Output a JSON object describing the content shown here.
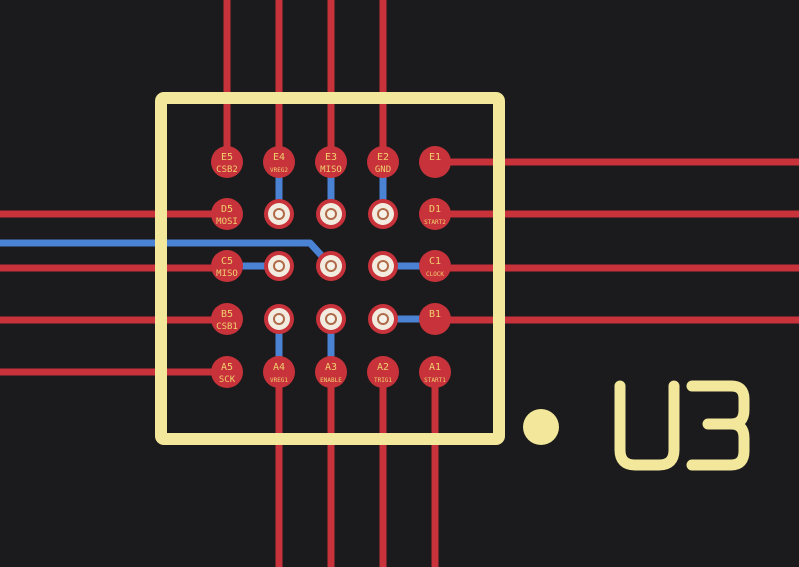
{
  "colors": {
    "background": "#1b1b1d",
    "copper_top": "#c8323a",
    "copper_bottom": "#4a82d4",
    "silkscreen": "#f2e79a",
    "pad": "#c8323a",
    "pad_label": "#f0d070",
    "via_ring": "#f1ecdf",
    "via_hole": "#b06a4a"
  },
  "component": {
    "reference": "U3",
    "pin1_marker": "dot"
  },
  "pads": [
    {
      "id": "E5",
      "net": "CSB2"
    },
    {
      "id": "E4",
      "net": "VREG2"
    },
    {
      "id": "E3",
      "net": "MISO"
    },
    {
      "id": "E2",
      "net": "GND"
    },
    {
      "id": "E1",
      "net": ""
    },
    {
      "id": "D5",
      "net": "MOSI"
    },
    {
      "id": "D1",
      "net": "START2"
    },
    {
      "id": "C5",
      "net": "MISO"
    },
    {
      "id": "C1",
      "net": "CLOCK"
    },
    {
      "id": "B5",
      "net": "CSB1"
    },
    {
      "id": "B1",
      "net": ""
    },
    {
      "id": "A5",
      "net": "SCK"
    },
    {
      "id": "A4",
      "net": "VREG1"
    },
    {
      "id": "A3",
      "net": "ENABLE"
    },
    {
      "id": "A2",
      "net": "TRIG1"
    },
    {
      "id": "A1",
      "net": "START1"
    }
  ]
}
